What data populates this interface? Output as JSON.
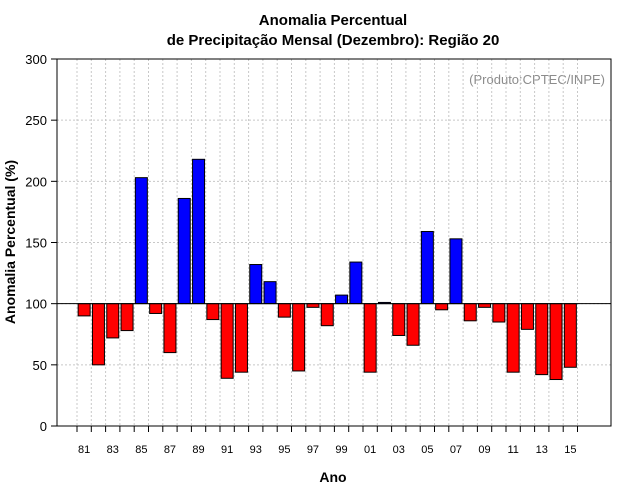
{
  "chart_data": {
    "type": "bar",
    "title": "Anomalia Percentual",
    "subtitle": "de Precipitação Mensal (Dezembro): Região 20",
    "xlabel": "Ano",
    "ylabel": "Anomalia Percentual (%)",
    "annotation": "(Produto:CPTEC/INPE)",
    "ylim": [
      0,
      300
    ],
    "yticks": [
      0,
      50,
      100,
      150,
      200,
      250,
      300
    ],
    "baseline": 100,
    "grid": true,
    "colors": {
      "above": "#0000ff",
      "below": "#ff0000",
      "edge": "#000000",
      "grid": "#c8c8c8"
    },
    "categories": [
      "1981",
      "1982",
      "1983",
      "1984",
      "1985",
      "1986",
      "1987",
      "1988",
      "1989",
      "1990",
      "1991",
      "1992",
      "1993",
      "1994",
      "1995",
      "1996",
      "1997",
      "1998",
      "1999",
      "2000",
      "2001",
      "2002",
      "2003",
      "2004",
      "2005",
      "2006",
      "2007",
      "2008",
      "2009",
      "2010",
      "2011",
      "2012",
      "2013",
      "2014",
      "2015"
    ],
    "values": [
      90,
      50,
      72,
      78,
      203,
      92,
      60,
      186,
      218,
      87,
      39,
      44,
      132,
      118,
      89,
      45,
      97,
      82,
      107,
      134,
      44,
      101,
      74,
      66,
      159,
      95,
      153,
      86,
      97,
      85,
      44,
      79,
      42,
      38,
      48
    ],
    "tick_labels": [
      "81",
      "83",
      "85",
      "87",
      "89",
      "91",
      "93",
      "95",
      "97",
      "99",
      "01",
      "03",
      "05",
      "07",
      "09",
      "11",
      "13",
      "15"
    ]
  }
}
